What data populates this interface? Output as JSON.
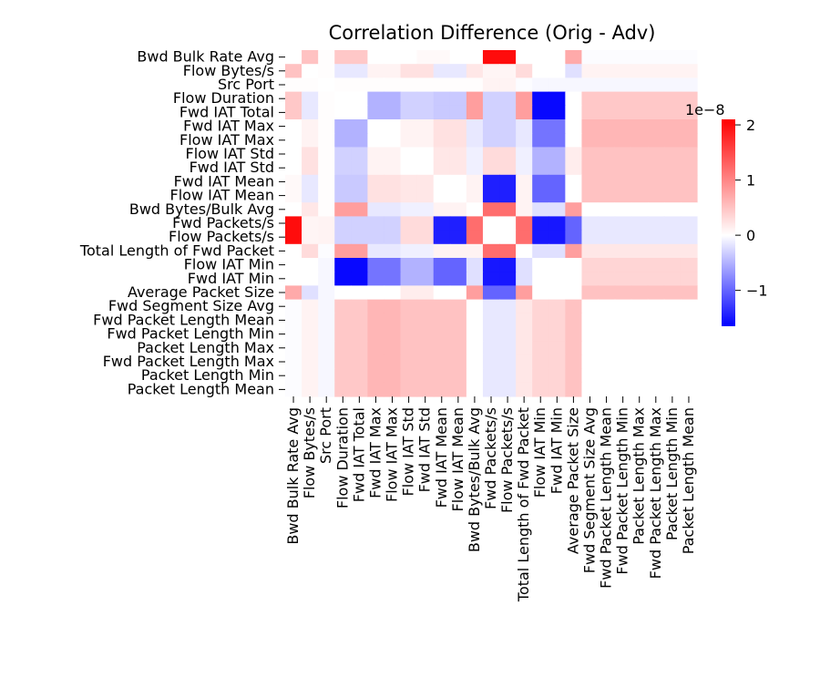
{
  "chart_data": {
    "type": "heatmap",
    "title": "Correlation Difference (Orig - Adv)",
    "xlabel": "",
    "ylabel": "",
    "labels": [
      "Bwd Bulk Rate Avg",
      "Flow Bytes/s",
      "Src Port",
      "Flow Duration",
      "Fwd IAT Total",
      "Fwd IAT Max",
      "Flow IAT Max",
      "Flow IAT Std",
      "Fwd IAT Std",
      "Fwd IAT Mean",
      "Flow IAT Mean",
      "Bwd Bytes/Bulk Avg",
      "Fwd Packets/s",
      "Flow Packets/s",
      "Total Length of Fwd Packet",
      "Flow IAT Min",
      "Fwd IAT Min",
      "Average Packet Size",
      "Fwd Segment Size Avg",
      "Fwd Packet Length Mean",
      "Fwd Packet Length Min",
      "Packet Length Max",
      "Fwd Packet Length Max",
      "Packet Length Min",
      "Packet Length Mean"
    ],
    "scale_label": "1e−8",
    "vmin": -1.65,
    "vmax": 2.1,
    "colorbar_ticks": [
      -1,
      0,
      1,
      2
    ],
    "colorbar_tick_labels": [
      "−1",
      "0",
      "1",
      "2"
    ],
    "colormap": [
      "#0000ff",
      "#ffffff",
      "#ff0000"
    ],
    "values": [
      [
        0.0,
        0.5,
        0.02,
        0.45,
        0.45,
        0.0,
        0.0,
        0.0,
        0.05,
        0.05,
        0.0,
        0.0,
        2.0,
        2.0,
        0.0,
        0.0,
        0.0,
        0.7,
        -0.02,
        -0.02,
        -0.02,
        -0.02,
        -0.02,
        -0.02,
        -0.02
      ],
      [
        0.5,
        0.0,
        0.02,
        -0.15,
        -0.15,
        0.1,
        0.1,
        0.25,
        0.25,
        -0.15,
        -0.15,
        0.2,
        0.08,
        0.08,
        0.3,
        0.0,
        0.0,
        -0.2,
        0.1,
        0.1,
        0.1,
        0.1,
        0.1,
        0.1,
        0.1
      ],
      [
        0.02,
        0.02,
        0.0,
        0.02,
        0.02,
        0.02,
        0.02,
        0.02,
        0.02,
        0.02,
        0.02,
        0.02,
        0.1,
        0.1,
        -0.02,
        -0.05,
        -0.05,
        -0.05,
        -0.05,
        -0.05,
        -0.05,
        -0.05,
        -0.05,
        -0.05,
        -0.05
      ],
      [
        0.45,
        -0.15,
        0.02,
        0.0,
        0.0,
        -0.5,
        -0.5,
        -0.3,
        -0.3,
        -0.35,
        -0.35,
        0.8,
        -0.3,
        -0.3,
        0.8,
        -1.6,
        -1.6,
        0.0,
        0.45,
        0.45,
        0.45,
        0.45,
        0.45,
        0.45,
        0.45
      ],
      [
        0.45,
        -0.15,
        0.02,
        0.0,
        0.0,
        -0.5,
        -0.5,
        -0.3,
        -0.3,
        -0.35,
        -0.35,
        0.8,
        -0.3,
        -0.3,
        0.8,
        -1.6,
        -1.6,
        0.0,
        0.45,
        0.45,
        0.45,
        0.45,
        0.45,
        0.45,
        0.45
      ],
      [
        0.0,
        0.1,
        0.02,
        -0.5,
        -0.5,
        0.0,
        0.0,
        0.1,
        0.1,
        0.25,
        0.25,
        -0.15,
        -0.3,
        -0.3,
        -0.15,
        -0.9,
        -0.9,
        0.0,
        0.6,
        0.6,
        0.6,
        0.6,
        0.6,
        0.6,
        0.6
      ],
      [
        0.0,
        0.1,
        0.02,
        -0.5,
        -0.5,
        0.0,
        0.0,
        0.1,
        0.1,
        0.25,
        0.25,
        -0.15,
        -0.3,
        -0.3,
        -0.15,
        -0.9,
        -0.9,
        0.0,
        0.6,
        0.6,
        0.6,
        0.6,
        0.6,
        0.6,
        0.6
      ],
      [
        0.0,
        0.25,
        0.02,
        -0.3,
        -0.3,
        0.1,
        0.1,
        0.0,
        0.0,
        0.2,
        0.2,
        -0.1,
        0.3,
        0.3,
        -0.1,
        -0.5,
        -0.5,
        0.15,
        0.5,
        0.5,
        0.5,
        0.5,
        0.5,
        0.5,
        0.5
      ],
      [
        0.0,
        0.25,
        0.02,
        -0.3,
        -0.3,
        0.1,
        0.1,
        0.0,
        0.0,
        0.2,
        0.2,
        -0.1,
        0.3,
        0.3,
        -0.1,
        -0.5,
        -0.5,
        0.15,
        0.5,
        0.5,
        0.5,
        0.5,
        0.5,
        0.5,
        0.5
      ],
      [
        0.05,
        -0.15,
        0.02,
        -0.35,
        -0.35,
        0.25,
        0.25,
        0.2,
        0.2,
        0.0,
        0.0,
        0.1,
        -1.45,
        -1.45,
        0.1,
        -1.0,
        -1.0,
        0.0,
        0.5,
        0.5,
        0.5,
        0.5,
        0.5,
        0.5,
        0.5
      ],
      [
        0.05,
        -0.15,
        0.02,
        -0.35,
        -0.35,
        0.25,
        0.25,
        0.2,
        0.2,
        0.0,
        0.0,
        0.1,
        -1.45,
        -1.45,
        0.1,
        -1.0,
        -1.0,
        0.0,
        0.5,
        0.5,
        0.5,
        0.5,
        0.5,
        0.5,
        0.5
      ],
      [
        0.0,
        0.2,
        0.02,
        0.8,
        0.8,
        -0.15,
        -0.15,
        -0.1,
        -0.1,
        0.1,
        0.1,
        0.0,
        1.2,
        1.2,
        0.1,
        -0.2,
        -0.2,
        0.8,
        0.0,
        0.0,
        0.0,
        0.0,
        0.0,
        0.0,
        0.0
      ],
      [
        2.0,
        0.08,
        0.1,
        -0.3,
        -0.3,
        -0.3,
        -0.3,
        0.3,
        0.3,
        -1.45,
        -1.45,
        1.2,
        0.0,
        0.0,
        1.2,
        -1.5,
        -1.5,
        -1.0,
        -0.15,
        -0.15,
        -0.15,
        -0.15,
        -0.15,
        -0.15,
        -0.15
      ],
      [
        2.0,
        0.08,
        0.1,
        -0.3,
        -0.3,
        -0.3,
        -0.3,
        0.3,
        0.3,
        -1.45,
        -1.45,
        1.2,
        0.0,
        0.0,
        1.2,
        -1.5,
        -1.5,
        -1.0,
        -0.15,
        -0.15,
        -0.15,
        -0.15,
        -0.15,
        -0.15,
        -0.15
      ],
      [
        0.0,
        0.3,
        -0.02,
        0.8,
        0.8,
        -0.15,
        -0.15,
        -0.1,
        -0.1,
        0.1,
        0.1,
        0.1,
        1.2,
        1.2,
        0.0,
        -0.2,
        -0.2,
        0.8,
        0.2,
        0.2,
        0.2,
        0.2,
        0.2,
        0.2,
        0.2
      ],
      [
        0.0,
        0.0,
        -0.05,
        -1.6,
        -1.6,
        -0.9,
        -0.9,
        -0.5,
        -0.5,
        -1.0,
        -1.0,
        -0.2,
        -1.5,
        -1.5,
        -0.2,
        0.0,
        0.0,
        0.0,
        0.35,
        0.35,
        0.35,
        0.35,
        0.35,
        0.35,
        0.35
      ],
      [
        0.0,
        0.0,
        -0.05,
        -1.6,
        -1.6,
        -0.9,
        -0.9,
        -0.5,
        -0.5,
        -1.0,
        -1.0,
        -0.2,
        -1.5,
        -1.5,
        -0.2,
        0.0,
        0.0,
        0.0,
        0.35,
        0.35,
        0.35,
        0.35,
        0.35,
        0.35,
        0.35
      ],
      [
        0.7,
        -0.2,
        -0.05,
        0.0,
        0.0,
        0.0,
        0.0,
        0.15,
        0.15,
        0.0,
        0.0,
        0.8,
        -1.0,
        -1.0,
        0.8,
        0.0,
        0.0,
        0.0,
        0.5,
        0.5,
        0.5,
        0.5,
        0.5,
        0.5,
        0.5
      ],
      [
        -0.02,
        0.1,
        -0.05,
        0.45,
        0.45,
        0.6,
        0.6,
        0.5,
        0.5,
        0.5,
        0.5,
        0.0,
        -0.15,
        -0.15,
        0.2,
        0.35,
        0.35,
        0.5,
        0.0,
        0.0,
        0.0,
        0.0,
        0.0,
        0.0,
        0.0
      ],
      [
        -0.02,
        0.1,
        -0.05,
        0.45,
        0.45,
        0.6,
        0.6,
        0.5,
        0.5,
        0.5,
        0.5,
        0.0,
        -0.15,
        -0.15,
        0.2,
        0.35,
        0.35,
        0.5,
        0.0,
        0.0,
        0.0,
        0.0,
        0.0,
        0.0,
        0.0
      ],
      [
        -0.02,
        0.1,
        -0.05,
        0.45,
        0.45,
        0.6,
        0.6,
        0.5,
        0.5,
        0.5,
        0.5,
        0.0,
        -0.15,
        -0.15,
        0.2,
        0.35,
        0.35,
        0.5,
        0.0,
        0.0,
        0.0,
        0.0,
        0.0,
        0.0,
        0.0
      ],
      [
        -0.02,
        0.1,
        -0.05,
        0.45,
        0.45,
        0.6,
        0.6,
        0.5,
        0.5,
        0.5,
        0.5,
        0.0,
        -0.15,
        -0.15,
        0.2,
        0.35,
        0.35,
        0.5,
        0.0,
        0.0,
        0.0,
        0.0,
        0.0,
        0.0,
        0.0
      ],
      [
        -0.02,
        0.1,
        -0.05,
        0.45,
        0.45,
        0.6,
        0.6,
        0.5,
        0.5,
        0.5,
        0.5,
        0.0,
        -0.15,
        -0.15,
        0.2,
        0.35,
        0.35,
        0.5,
        0.0,
        0.0,
        0.0,
        0.0,
        0.0,
        0.0,
        0.0
      ],
      [
        -0.02,
        0.1,
        -0.05,
        0.45,
        0.45,
        0.6,
        0.6,
        0.5,
        0.5,
        0.5,
        0.5,
        0.0,
        -0.15,
        -0.15,
        0.2,
        0.35,
        0.35,
        0.5,
        0.0,
        0.0,
        0.0,
        0.0,
        0.0,
        0.0,
        0.0
      ],
      [
        -0.02,
        0.1,
        -0.05,
        0.45,
        0.45,
        0.6,
        0.6,
        0.5,
        0.5,
        0.5,
        0.5,
        0.0,
        -0.15,
        -0.15,
        0.2,
        0.35,
        0.35,
        0.5,
        0.0,
        0.0,
        0.0,
        0.0,
        0.0,
        0.0,
        0.0
      ]
    ]
  }
}
